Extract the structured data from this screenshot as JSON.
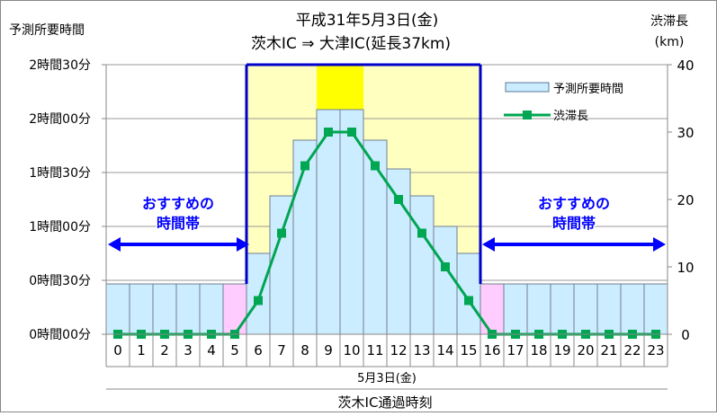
{
  "chart_data": {
    "type": "bar",
    "title": "平成31年5月3日(金)",
    "subtitle": "茨木IC ⇒ 大津IC(延長37km)",
    "y_left_title": "予測所要時間",
    "y_right_title": "渋滞長",
    "y_right_unit": "(km)",
    "xlabel": "茨木IC通過時刻",
    "date_label": "5月3日(金)",
    "categories": [
      "0",
      "1",
      "2",
      "3",
      "4",
      "5",
      "6",
      "7",
      "8",
      "9",
      "10",
      "11",
      "12",
      "13",
      "14",
      "15",
      "16",
      "17",
      "18",
      "19",
      "20",
      "21",
      "22",
      "23"
    ],
    "y_left_ticks": [
      "0時間00分",
      "0時間30分",
      "1時間00分",
      "1時間30分",
      "2時間00分",
      "2時間30分"
    ],
    "y_left_lim_minutes": [
      0,
      150
    ],
    "y_right_ticks": [
      "0",
      "10",
      "20",
      "30",
      "40"
    ],
    "y_right_lim": [
      0,
      40
    ],
    "series": [
      {
        "name": "予測所要時間",
        "kind": "bar",
        "unit": "minutes",
        "values": [
          28,
          28,
          28,
          28,
          28,
          28,
          45,
          77,
          108,
          125,
          125,
          108,
          92,
          77,
          60,
          45,
          28,
          28,
          28,
          28,
          28,
          28,
          28,
          28
        ]
      },
      {
        "name": "渋滞長",
        "kind": "line",
        "unit": "km",
        "values": [
          0,
          0,
          0,
          0,
          0,
          0,
          5,
          15,
          25,
          30,
          30,
          25,
          20,
          15,
          10,
          5,
          0,
          0,
          0,
          0,
          0,
          0,
          0,
          0
        ]
      }
    ],
    "highlight_bands": [
      {
        "from_hour": 6,
        "to_hour": 16,
        "color": "#FFFFC0"
      },
      {
        "from_hour": 9,
        "to_hour": 11,
        "color": "#FFFF00"
      }
    ],
    "bar_colors": {
      "default": "#CCECFF",
      "pink_hours": [
        5,
        16
      ],
      "pink": "#FFCCFF"
    },
    "line_color": "#00A651",
    "line_marker": "square",
    "boundary_line_color": "#0000CC",
    "boundary_hours": [
      6,
      16
    ],
    "recommended": [
      {
        "label_line1": "おすすめの",
        "label_line2": "時間帯",
        "side": "left"
      },
      {
        "label_line1": "おすすめの",
        "label_line2": "時間帯",
        "side": "right"
      }
    ],
    "legend_position": "top-right",
    "grid": "horizontal"
  }
}
